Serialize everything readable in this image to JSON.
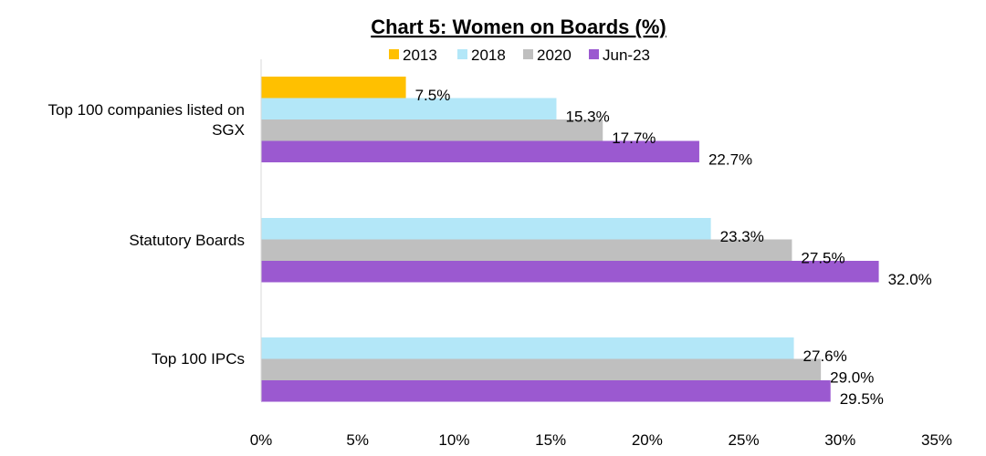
{
  "chart_data": {
    "type": "bar",
    "orientation": "horizontal",
    "title": "Chart 5: Women on Boards (%)",
    "xlabel": "",
    "ylabel": "",
    "xlim": [
      0,
      35
    ],
    "x_ticks": [
      "0%",
      "5%",
      "10%",
      "15%",
      "20%",
      "25%",
      "30%",
      "35%"
    ],
    "x_tick_values": [
      0,
      5,
      10,
      15,
      20,
      25,
      30,
      35
    ],
    "grid": false,
    "legend_position": "top",
    "categories": [
      [
        "Top 100 companies listed on",
        "SGX"
      ],
      [
        "Statutory Boards"
      ],
      [
        "Top 100 IPCs"
      ]
    ],
    "series": [
      {
        "name": "2013",
        "color": "#FFC000",
        "values": [
          7.5,
          null,
          null
        ],
        "labels": [
          "7.5%",
          "",
          ""
        ]
      },
      {
        "name": "2018",
        "color": "#B3E7F8",
        "values": [
          15.3,
          23.3,
          27.6
        ],
        "labels": [
          "15.3%",
          "23.3%",
          "27.6%"
        ]
      },
      {
        "name": "2020",
        "color": "#BFBFBF",
        "values": [
          17.7,
          27.5,
          29.0
        ],
        "labels": [
          "17.7%",
          "27.5%",
          "29.0%"
        ]
      },
      {
        "name": "Jun-23",
        "color": "#9B59D0",
        "values": [
          22.7,
          32.0,
          29.5
        ],
        "labels": [
          "22.7%",
          "32.0%",
          "29.5%"
        ]
      }
    ]
  }
}
